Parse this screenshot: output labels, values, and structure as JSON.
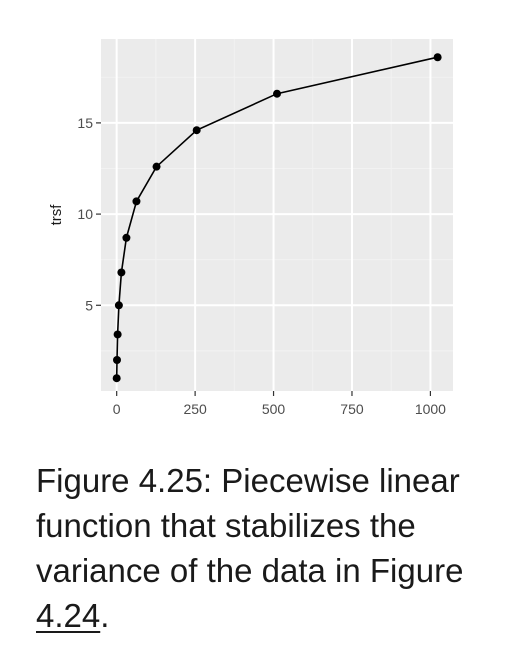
{
  "chart_data": {
    "type": "line",
    "title": "",
    "xlabel": "",
    "ylabel": "trsf",
    "xlim": [
      -50,
      1072
    ],
    "ylim": [
      0.3,
      19.6
    ],
    "x_ticks": [
      0,
      250,
      500,
      750,
      1000
    ],
    "x_tick_labels": [
      "0",
      "250",
      "500",
      "750",
      "1000"
    ],
    "y_ticks": [
      5,
      10,
      15
    ],
    "y_tick_labels": [
      "5",
      "10",
      "15"
    ],
    "grid": true,
    "legend": "none",
    "series": [
      {
        "x": [
          0,
          1,
          3,
          7,
          15,
          31,
          63,
          127,
          255,
          511,
          1023
        ],
        "y": [
          1.0,
          2.0,
          3.4,
          5.0,
          6.8,
          8.7,
          10.7,
          12.6,
          14.6,
          16.6,
          18.6
        ]
      }
    ]
  },
  "colors": {
    "panel_background": "#ebebeb",
    "grid_major": "#ffffff",
    "grid_minor": "#f2f2f2",
    "line": "#000000",
    "point": "#000000"
  },
  "caption": {
    "text": "Figure 4.25: Piecewise linear function that stabilizes the variance of the data in Figure ",
    "link_text": "4.24",
    "trailing": "."
  }
}
